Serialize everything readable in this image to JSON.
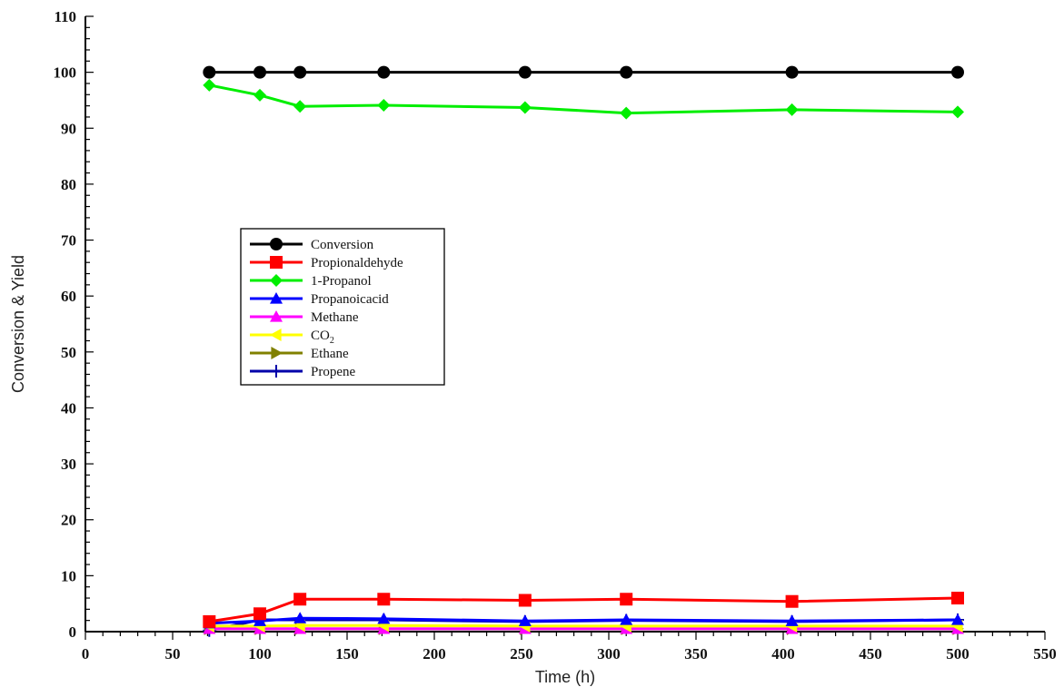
{
  "chart_data": {
    "type": "line",
    "title": "",
    "xlabel": "Time (h)",
    "ylabel": "Conversion & Yield",
    "xlim": [
      0,
      550
    ],
    "ylim": [
      0,
      110
    ],
    "x_ticks": [
      0,
      50,
      100,
      150,
      200,
      250,
      300,
      350,
      400,
      450,
      500,
      550
    ],
    "y_ticks": [
      0,
      10,
      20,
      30,
      40,
      50,
      60,
      70,
      80,
      90,
      100,
      110
    ],
    "grid": false,
    "legend_position": "center-left",
    "x": [
      71,
      100,
      123,
      171,
      252,
      310,
      405,
      500
    ],
    "series": [
      {
        "name": "Conversion",
        "label_main": "Conversion",
        "label_sub": "",
        "marker": "circle",
        "color": "#000000",
        "values": [
          100,
          100,
          100,
          100,
          100,
          100,
          100,
          100
        ]
      },
      {
        "name": "Propionaldehyde",
        "label_main": "Propionaldehyde",
        "label_sub": "",
        "marker": "square",
        "color": "#ff0000",
        "values": [
          1.8,
          3.2,
          5.8,
          5.8,
          5.6,
          5.8,
          5.4,
          6.0
        ]
      },
      {
        "name": "1-Propanol",
        "label_main": "1-Propanol",
        "label_sub": "",
        "marker": "diamond",
        "color": "#00ee00",
        "values": [
          97.7,
          95.9,
          93.9,
          94.1,
          93.7,
          92.7,
          93.3,
          92.9
        ]
      },
      {
        "name": "Propanoicacid",
        "label_main": "Propanoicacid",
        "label_sub": "",
        "marker": "triangle-up",
        "color": "#0000ff",
        "values": [
          1.5,
          1.9,
          2.4,
          2.3,
          1.9,
          2.1,
          1.9,
          2.1
        ]
      },
      {
        "name": "Methane",
        "label_main": "Methane",
        "label_sub": "",
        "marker": "triangle-up",
        "color": "#ff00ff",
        "values": [
          0.5,
          0.5,
          0.5,
          0.5,
          0.5,
          0.5,
          0.5,
          0.5
        ]
      },
      {
        "name": "CO2",
        "label_main": "CO",
        "label_sub": "2",
        "marker": "triangle-left",
        "color": "#ffff00",
        "values": [
          1.0,
          1.0,
          1.1,
          1.1,
          1.0,
          1.0,
          1.0,
          1.0
        ]
      },
      {
        "name": "Ethane",
        "label_main": "Ethane",
        "label_sub": "",
        "marker": "triangle-right",
        "color": "#808000",
        "values": [
          0.5,
          0.5,
          0.5,
          0.5,
          0.5,
          0.5,
          0.5,
          0.5
        ]
      },
      {
        "name": "Propene",
        "label_main": "Propene",
        "label_sub": "",
        "marker": "plus",
        "color": "#0000aa",
        "values": [
          0.2,
          2.1,
          2.1,
          2.1,
          1.8,
          2.0,
          1.8,
          2.1
        ]
      }
    ]
  }
}
